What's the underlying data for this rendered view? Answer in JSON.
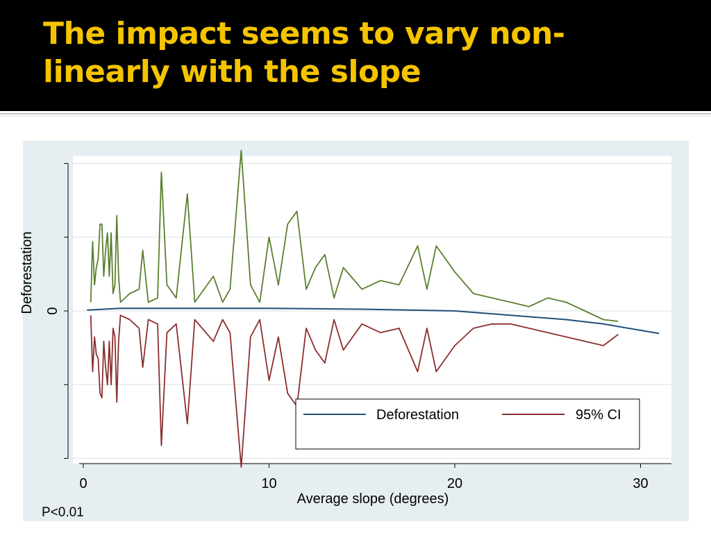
{
  "slide": {
    "title": "The impact seems to vary non-linearly with the slope",
    "footnote": "P<0.01"
  },
  "colors": {
    "title": "#f5c400",
    "header_bg": "#000000",
    "panel_bg": "#e6eef2",
    "fit": "#1f4e79",
    "ci_upper": "#5a7f2e",
    "ci_lower": "#8b2e2e"
  },
  "chart_data": {
    "type": "line",
    "xlabel": "Average slope (degrees)",
    "ylabel": "Deforestation",
    "xlim": [
      0,
      31
    ],
    "xticks": [
      0,
      10,
      20,
      30
    ],
    "ytick_labels": [
      "0"
    ],
    "grid": true,
    "legend_placement": "bottom-right",
    "legend": [
      "Deforestation",
      "95% CI"
    ],
    "series": [
      {
        "name": "Deforestation",
        "x": [
          0.2,
          2,
          5,
          10,
          15,
          20,
          23,
          26,
          28,
          31
        ],
        "y": [
          0.01,
          0.03,
          0.03,
          0.03,
          0.02,
          0,
          -0.05,
          -0.1,
          -0.15,
          -0.26
        ]
      },
      {
        "name": "95% CI",
        "x": [
          0.4,
          0.5,
          0.6,
          0.7,
          0.8,
          0.9,
          1.0,
          1.1,
          1.2,
          1.3,
          1.4,
          1.5,
          1.6,
          1.7,
          1.8,
          1.9,
          2.0,
          2.5,
          3.0,
          3.2,
          3.5,
          4.0,
          4.2,
          4.5,
          5.0,
          5.6,
          6.0,
          7.0,
          7.5,
          7.9,
          8.5,
          9.0,
          9.5,
          10.0,
          10.5,
          11.0,
          11.5,
          12.0,
          12.5,
          13.0,
          13.5,
          14.0,
          15.0,
          16.0,
          17.0,
          18.0,
          18.5,
          19.0,
          20.0,
          21.0,
          22.0,
          23.0,
          24.0,
          25.0,
          26.0,
          27.0,
          28.0,
          28.8
        ],
        "upper": [
          0.1,
          0.8,
          0.3,
          0.5,
          0.6,
          1.0,
          1.0,
          0.4,
          0.7,
          0.9,
          0.4,
          0.9,
          0.2,
          0.3,
          1.1,
          0.4,
          0.1,
          0.2,
          0.25,
          0.7,
          0.1,
          0.15,
          1.6,
          0.3,
          0.15,
          1.35,
          0.1,
          0.4,
          0.1,
          0.25,
          1.85,
          0.3,
          0.1,
          0.85,
          0.3,
          1.0,
          1.15,
          0.25,
          0.5,
          0.65,
          0.15,
          0.5,
          0.25,
          0.35,
          0.3,
          0.75,
          0.25,
          0.75,
          0.45,
          0.2,
          0.15,
          0.1,
          0.05,
          0.15,
          0.1,
          0.0,
          -0.1,
          -0.12
        ],
        "lower": [
          -0.05,
          -0.7,
          -0.3,
          -0.5,
          -0.55,
          -0.95,
          -1.0,
          -0.35,
          -0.65,
          -0.85,
          -0.35,
          -0.85,
          -0.2,
          -0.3,
          -1.05,
          -0.35,
          -0.05,
          -0.1,
          -0.2,
          -0.65,
          -0.1,
          -0.15,
          -1.55,
          -0.25,
          -0.15,
          -1.3,
          -0.1,
          -0.35,
          -0.1,
          -0.25,
          -1.8,
          -0.3,
          -0.1,
          -0.8,
          -0.3,
          -0.95,
          -1.1,
          -0.2,
          -0.45,
          -0.6,
          -0.1,
          -0.45,
          -0.15,
          -0.25,
          -0.2,
          -0.7,
          -0.2,
          -0.7,
          -0.4,
          -0.2,
          -0.15,
          -0.15,
          -0.2,
          -0.25,
          -0.3,
          -0.35,
          -0.4,
          -0.27
        ]
      }
    ]
  }
}
